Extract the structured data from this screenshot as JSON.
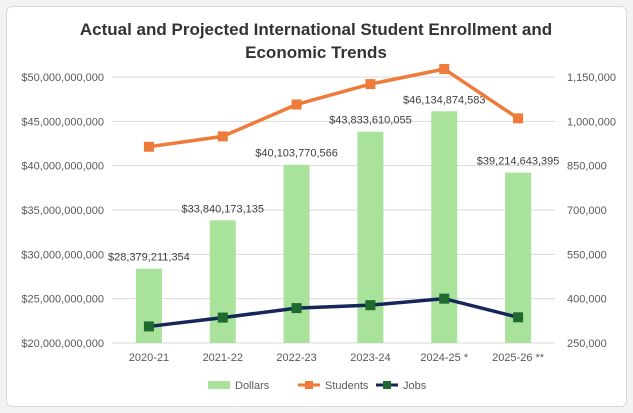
{
  "chart_data": {
    "type": "bar",
    "title": "Actual and Projected International Student Enrollment and Economic Trends",
    "categories": [
      "2020-21",
      "2021-22",
      "2022-23",
      "2023-24",
      "2024-25 *",
      "2025-26 **"
    ],
    "series": [
      {
        "name": "Dollars",
        "type": "bar",
        "axis": "left",
        "color": "#a9e29b",
        "values": [
          28379211354,
          33840173135,
          40103770566,
          43833610055,
          46134874583,
          39214643395
        ],
        "labels": [
          "$28,379,211,354",
          "$33,840,173,135",
          "$40,103,770,566",
          "$43,833,610,055",
          "$46,134,874,583",
          "$39,214,643,395"
        ]
      },
      {
        "name": "Students",
        "type": "line",
        "axis": "right",
        "color": "#ee7b3a",
        "values": [
          914000,
          949000,
          1057000,
          1126000,
          1177000,
          1010000
        ]
      },
      {
        "name": "Jobs",
        "type": "line",
        "axis": "right",
        "color": "#16265a",
        "marker_color": "#1e6b2e",
        "values": [
          306000,
          336000,
          368000,
          378000,
          400000,
          337000
        ]
      }
    ],
    "y_left": {
      "range": [
        20000000000,
        50000000000
      ],
      "ticks": [
        20000000000,
        25000000000,
        30000000000,
        35000000000,
        40000000000,
        45000000000,
        50000000000
      ],
      "tick_labels": [
        "$20,000,000,000",
        "$25,000,000,000",
        "$30,000,000,000",
        "$35,000,000,000",
        "$40,000,000,000",
        "$45,000,000,000",
        "$50,000,000,000"
      ]
    },
    "y_right": {
      "range": [
        250000,
        1150000
      ],
      "ticks": [
        250000,
        400000,
        550000,
        700000,
        850000,
        1000000,
        1150000
      ],
      "tick_labels": [
        "250,000",
        "400,000",
        "550,000",
        "700,000",
        "850,000",
        "1,000,000",
        "1,150,000"
      ]
    },
    "grid": true,
    "legend": "bottom"
  }
}
